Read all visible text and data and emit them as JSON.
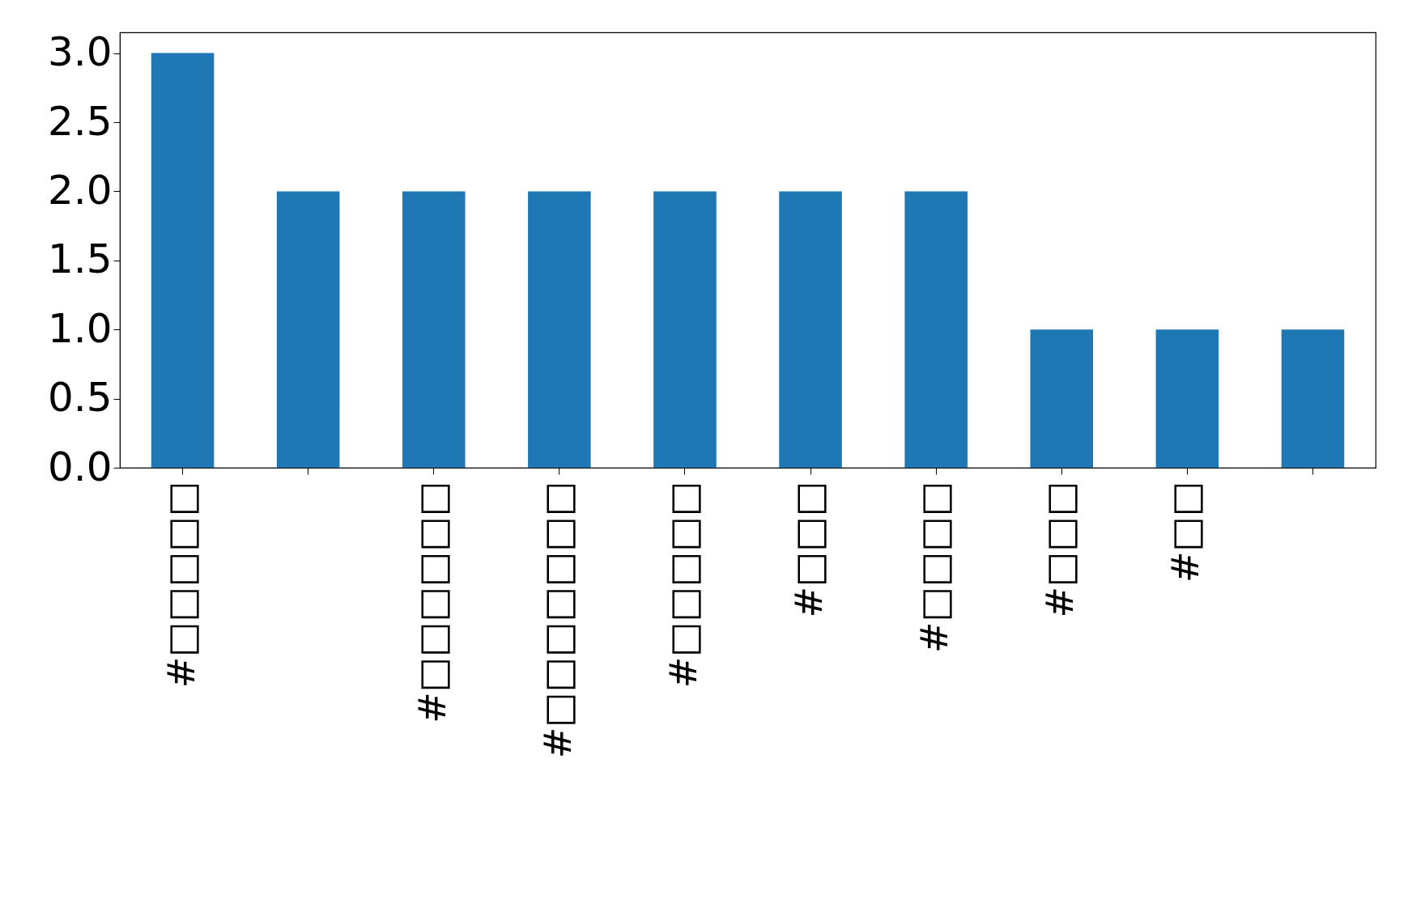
{
  "chart_data": {
    "type": "bar",
    "categories": [
      "#□□□□□",
      null,
      "#□□□□□□",
      "#□□□□□□□",
      "#□□□□□",
      "#□□□",
      "#□□□□",
      "#□□□",
      "#□□",
      null
    ],
    "values": [
      3,
      2,
      2,
      2,
      2,
      2,
      2,
      1,
      1,
      1
    ],
    "color": "#1f77b4",
    "ylim": [
      0,
      3.15
    ],
    "yticks": [
      {
        "value": 0,
        "label": "0.0"
      },
      {
        "value": 0.5,
        "label": "0.5"
      },
      {
        "value": 1,
        "label": "1.0"
      },
      {
        "value": 1.5,
        "label": "1.5"
      },
      {
        "value": 2,
        "label": "2.0"
      },
      {
        "value": 2.5,
        "label": "2.5"
      },
      {
        "value": 3,
        "label": "3.0"
      }
    ],
    "grid": false
  }
}
